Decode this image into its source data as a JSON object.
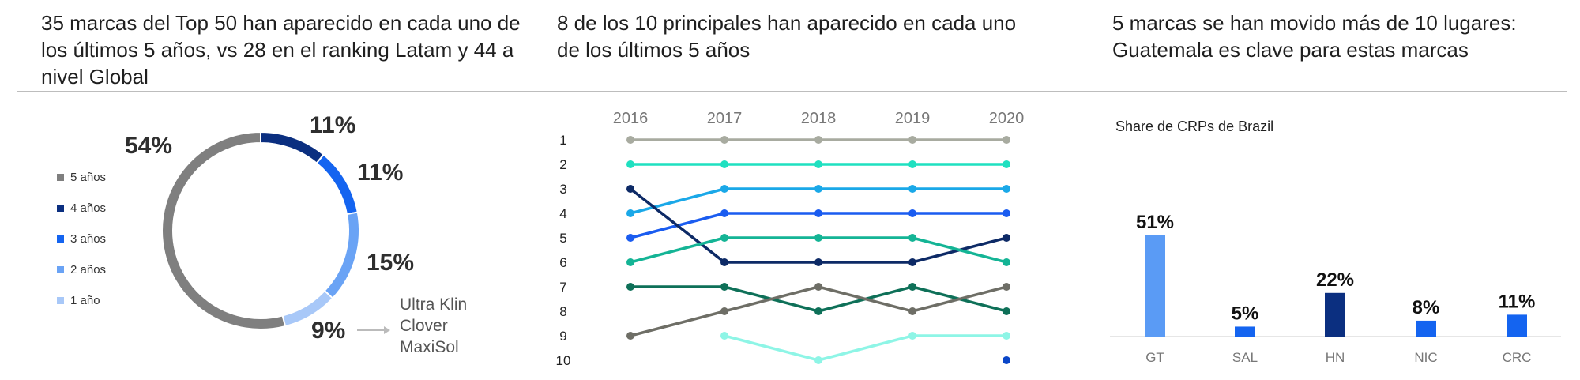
{
  "titles": {
    "donut": "35 marcas del Top 50 han aparecido en cada uno de los últimos 5 años, vs 28  en el ranking Latam y 44 a nivel Global",
    "bump": "8 de los 10 principales han aparecido en cada uno de los últimos 5 años",
    "bar": "5 marcas se han movido más de 10 lugares: Guatemala es clave para estas marcas"
  },
  "annotation": {
    "brands": "Ultra Klin\nClover\nMaxiSol"
  },
  "chart_data": [
    {
      "type": "pie",
      "variant": "donut",
      "legend_position": "left",
      "slices": [
        {
          "label": "5 años",
          "value": 54,
          "value_label": "54%",
          "color": "#7f7f7f"
        },
        {
          "label": "4 años",
          "value": 11,
          "value_label": "11%",
          "color": "#0b2f80"
        },
        {
          "label": "3 años",
          "value": 11,
          "value_label": "11%",
          "color": "#1464f0"
        },
        {
          "label": "2 años",
          "value": 15,
          "value_label": "15%",
          "color": "#6aa3f5"
        },
        {
          "label": "1 año",
          "value": 9,
          "value_label": "9%",
          "color": "#a8c8f8"
        }
      ]
    },
    {
      "type": "line",
      "variant": "bump",
      "x": [
        "2016",
        "2017",
        "2018",
        "2019",
        "2020"
      ],
      "y_ticks": [
        "1",
        "2",
        "3",
        "4",
        "5",
        "6",
        "7",
        "8",
        "9",
        "10"
      ],
      "y_inverted": true,
      "series": [
        {
          "ranks": [
            1,
            1,
            1,
            1,
            1
          ],
          "color": "#a8aba0"
        },
        {
          "ranks": [
            2,
            2,
            2,
            2,
            2
          ],
          "color": "#1fe0c0"
        },
        {
          "ranks": [
            4,
            3,
            3,
            3,
            3
          ],
          "color": "#1aa8e8"
        },
        {
          "ranks": [
            5,
            4,
            4,
            4,
            4
          ],
          "color": "#1a5cf0"
        },
        {
          "ranks": [
            3,
            6,
            6,
            6,
            5
          ],
          "color": "#0d2a66"
        },
        {
          "ranks": [
            6,
            5,
            5,
            5,
            6
          ],
          "color": "#14b495"
        },
        {
          "ranks": [
            7,
            7,
            8,
            7,
            8
          ],
          "color": "#0e7058"
        },
        {
          "ranks": [
            9,
            8,
            7,
            8,
            7
          ],
          "color": "#6e6e66"
        },
        {
          "ranks": [
            null,
            9,
            10,
            9,
            9
          ],
          "color": "#8ef5e6"
        },
        {
          "ranks": [
            null,
            null,
            null,
            null,
            10
          ],
          "color": "#0a46c8"
        }
      ]
    },
    {
      "type": "bar",
      "subtitle": "Share de CRPs de Brazil",
      "categories": [
        "GT",
        "SAL",
        "HN",
        "NIC",
        "CRC"
      ],
      "values": [
        51,
        5,
        22,
        8,
        11
      ],
      "value_labels": [
        "51%",
        "5%",
        "22%",
        "8%",
        "11%"
      ],
      "colors": [
        "#5a9bf5",
        "#1464f0",
        "#0b2f80",
        "#1464f0",
        "#1464f0"
      ],
      "ylim": [
        0,
        60
      ]
    }
  ]
}
